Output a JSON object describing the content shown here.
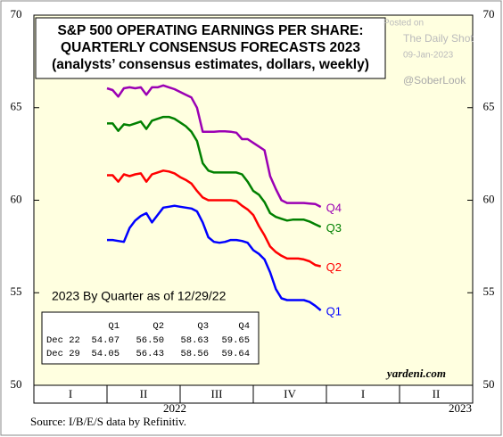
{
  "chart_data": {
    "type": "line",
    "title_lines": [
      "S&P 500 OPERATING EARNINGS PER SHARE:",
      "QUARTERLY CONSENSUS FORECASTS 2023",
      "(analysts’ consensus estimates, dollars, weekly)"
    ],
    "x": [
      1,
      1.077,
      1.154,
      1.231,
      1.308,
      1.385,
      1.462,
      1.538,
      1.615,
      1.692,
      1.769,
      1.846,
      1.923,
      2,
      2.077,
      2.154,
      2.231,
      2.308,
      2.385,
      2.462,
      2.538,
      2.615,
      2.692,
      2.769,
      2.846,
      2.923,
      3,
      3.077,
      3.154,
      3.231,
      3.308,
      3.385,
      3.462,
      3.538,
      3.615,
      3.692,
      3.769,
      3.846,
      3.923
    ],
    "xlim": [
      0,
      6
    ],
    "quarter_boundaries": [
      0,
      1,
      2,
      3,
      4,
      5,
      6
    ],
    "quarter_labels": [
      "I",
      "II",
      "III",
      "IV",
      "I",
      "II"
    ],
    "year_labels": [
      "2022",
      "2023"
    ],
    "ylim": [
      50,
      70
    ],
    "yticks": [
      50,
      55,
      60,
      65,
      70
    ],
    "series": [
      {
        "name": "Q4",
        "color": "#9b00b4",
        "values": [
          66.05,
          65.95,
          65.6,
          66.05,
          66.1,
          66.05,
          66.1,
          65.7,
          66.1,
          66.1,
          66.2,
          66.1,
          66.0,
          65.85,
          65.7,
          65.55,
          65.0,
          63.7,
          63.7,
          63.7,
          63.72,
          63.72,
          63.7,
          63.65,
          63.3,
          63.3,
          63.1,
          62.9,
          62.7,
          61.3,
          60.6,
          60.0,
          59.85,
          59.85,
          59.85,
          59.85,
          59.82,
          59.8,
          59.64
        ]
      },
      {
        "name": "Q3",
        "color": "#008000",
        "values": [
          64.15,
          64.15,
          63.75,
          64.1,
          64.05,
          64.15,
          64.25,
          63.85,
          64.3,
          64.4,
          64.5,
          64.5,
          64.4,
          64.2,
          64.0,
          63.7,
          63.2,
          62.0,
          61.6,
          61.5,
          61.5,
          61.5,
          61.5,
          61.5,
          61.4,
          61.0,
          60.5,
          60.3,
          59.9,
          59.3,
          59.1,
          59.0,
          58.9,
          58.95,
          58.95,
          58.95,
          58.85,
          58.7,
          58.56
        ]
      },
      {
        "name": "Q2",
        "color": "#ff0000",
        "values": [
          61.35,
          61.35,
          61.0,
          61.4,
          61.3,
          61.4,
          61.45,
          61.0,
          61.4,
          61.5,
          61.6,
          61.55,
          61.45,
          61.25,
          61.1,
          60.9,
          60.5,
          60.15,
          60.0,
          60.0,
          60.0,
          60.0,
          60.0,
          59.95,
          59.7,
          59.5,
          59.2,
          58.6,
          58.1,
          57.5,
          57.2,
          57.0,
          56.85,
          56.85,
          56.85,
          56.8,
          56.7,
          56.5,
          56.43
        ]
      },
      {
        "name": "Q1",
        "color": "#0000ff",
        "values": [
          57.85,
          57.85,
          57.8,
          57.75,
          58.5,
          58.9,
          59.15,
          59.3,
          58.8,
          59.2,
          59.6,
          59.65,
          59.7,
          59.65,
          59.6,
          59.55,
          59.4,
          58.8,
          58.0,
          57.75,
          57.7,
          57.75,
          57.85,
          57.85,
          57.8,
          57.7,
          57.3,
          57.1,
          56.8,
          56.1,
          55.2,
          54.7,
          54.6,
          54.6,
          54.6,
          54.6,
          54.5,
          54.3,
          54.05
        ]
      }
    ],
    "table_title": "2023 By Quarter as of 12/29/22",
    "table": {
      "columns": [
        "Q1",
        "Q2",
        "Q3",
        "Q4"
      ],
      "rows": [
        {
          "label": "Dec 22",
          "cells": [
            "54.07",
            "56.50",
            "58.63",
            "59.65"
          ]
        },
        {
          "label": "Dec 29",
          "cells": [
            "54.05",
            "56.43",
            "58.56",
            "59.64"
          ]
        }
      ]
    },
    "credit": "yardeni.com",
    "source": "Source: I/B/E/S data by Refinitiv.",
    "watermark": [
      "Posted on",
      "The Daily Shot",
      "09-Jan-2023",
      "@SoberLook"
    ]
  }
}
